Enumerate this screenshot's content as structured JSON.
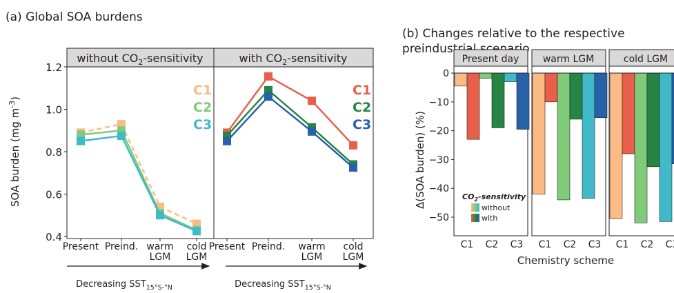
{
  "panel_a": {
    "title": "(a) Global SOA burdens",
    "ylabel_main": "SOA burden (mg m",
    "ylabel_sup": "-3",
    "ylabel_end": ")",
    "facet_left": "without CO2-sensitivity",
    "facet_left_pre": "without CO",
    "facet_left_sub": "2",
    "facet_left_post": "-sensitivity",
    "facet_right_pre": "with CO",
    "facet_right_sub": "2",
    "facet_right_post": "-sensitivity",
    "arrow_label_main": "Decreasing SST",
    "arrow_label_sub": "15°S-°N"
  },
  "panel_b": {
    "title_line1": "(b) Changes relative to the respective",
    "title_line2": "preindustrial scenario",
    "ylabel": "Δ(SOA burden) (%)",
    "xlabel": "Chemistry scheme",
    "legend_title_pre": "CO",
    "legend_title_sub": "2",
    "legend_title_post": "-sensitivity",
    "legend_without": "without",
    "legend_with": "with"
  },
  "colors": {
    "C1_without": "#fbbb86",
    "C2_without": "#7fcb7a",
    "C3_without": "#40b9c9",
    "C1_with": "#e8604a",
    "C2_with": "#268444",
    "C3_with": "#2761a8",
    "strip_fill": "#d9d9d9"
  },
  "chart_data": [
    {
      "type": "line",
      "panel": "a-left",
      "facet": "without CO2-sensitivity",
      "categories": [
        "Present",
        "Preind.",
        "warm LGM",
        "cold LGM"
      ],
      "ylim": [
        0.4,
        1.2
      ],
      "yticks": [
        "0.4",
        "0.6",
        "0.8",
        "1.0",
        "1.2"
      ],
      "series": [
        {
          "name": "C1",
          "values": [
            0.89,
            0.93,
            0.54,
            0.46
          ],
          "dashed": true
        },
        {
          "name": "C2",
          "values": [
            0.88,
            0.9,
            0.51,
            0.43
          ]
        },
        {
          "name": "C3",
          "values": [
            0.85,
            0.875,
            0.5,
            0.425
          ]
        }
      ]
    },
    {
      "type": "line",
      "panel": "a-right",
      "facet": "with CO2-sensitivity",
      "categories": [
        "Present",
        "Preind.",
        "warm LGM",
        "cold LGM"
      ],
      "ylim": [
        0.4,
        1.2
      ],
      "series": [
        {
          "name": "C1",
          "values": [
            0.89,
            1.155,
            1.04,
            0.83
          ]
        },
        {
          "name": "C2",
          "values": [
            0.875,
            1.09,
            0.915,
            0.74
          ]
        },
        {
          "name": "C3",
          "values": [
            0.85,
            1.06,
            0.895,
            0.725
          ]
        }
      ]
    },
    {
      "type": "bar",
      "panel": "b",
      "facets": [
        "Present day",
        "warm LGM",
        "cold LGM"
      ],
      "categories": [
        "C1",
        "C2",
        "C3"
      ],
      "ylim": [
        -55,
        5
      ],
      "yticks": [
        "0",
        "−10",
        "−20",
        "−30",
        "−40",
        "−50"
      ],
      "series": [
        {
          "facet": "Present day",
          "name": "without",
          "values": [
            -4.5,
            -1.8,
            -3
          ]
        },
        {
          "facet": "Present day",
          "name": "with",
          "values": [
            -23,
            -19,
            -19.5
          ]
        },
        {
          "facet": "warm LGM",
          "name": "without",
          "values": [
            -42,
            -44,
            -43.5
          ]
        },
        {
          "facet": "warm LGM",
          "name": "with",
          "values": [
            -10,
            -16,
            -15.5
          ]
        },
        {
          "facet": "cold LGM",
          "name": "without",
          "values": [
            -50.5,
            -52,
            -51.5
          ]
        },
        {
          "facet": "cold LGM",
          "name": "with",
          "values": [
            -28,
            -32.5,
            -31.5
          ]
        }
      ]
    }
  ]
}
